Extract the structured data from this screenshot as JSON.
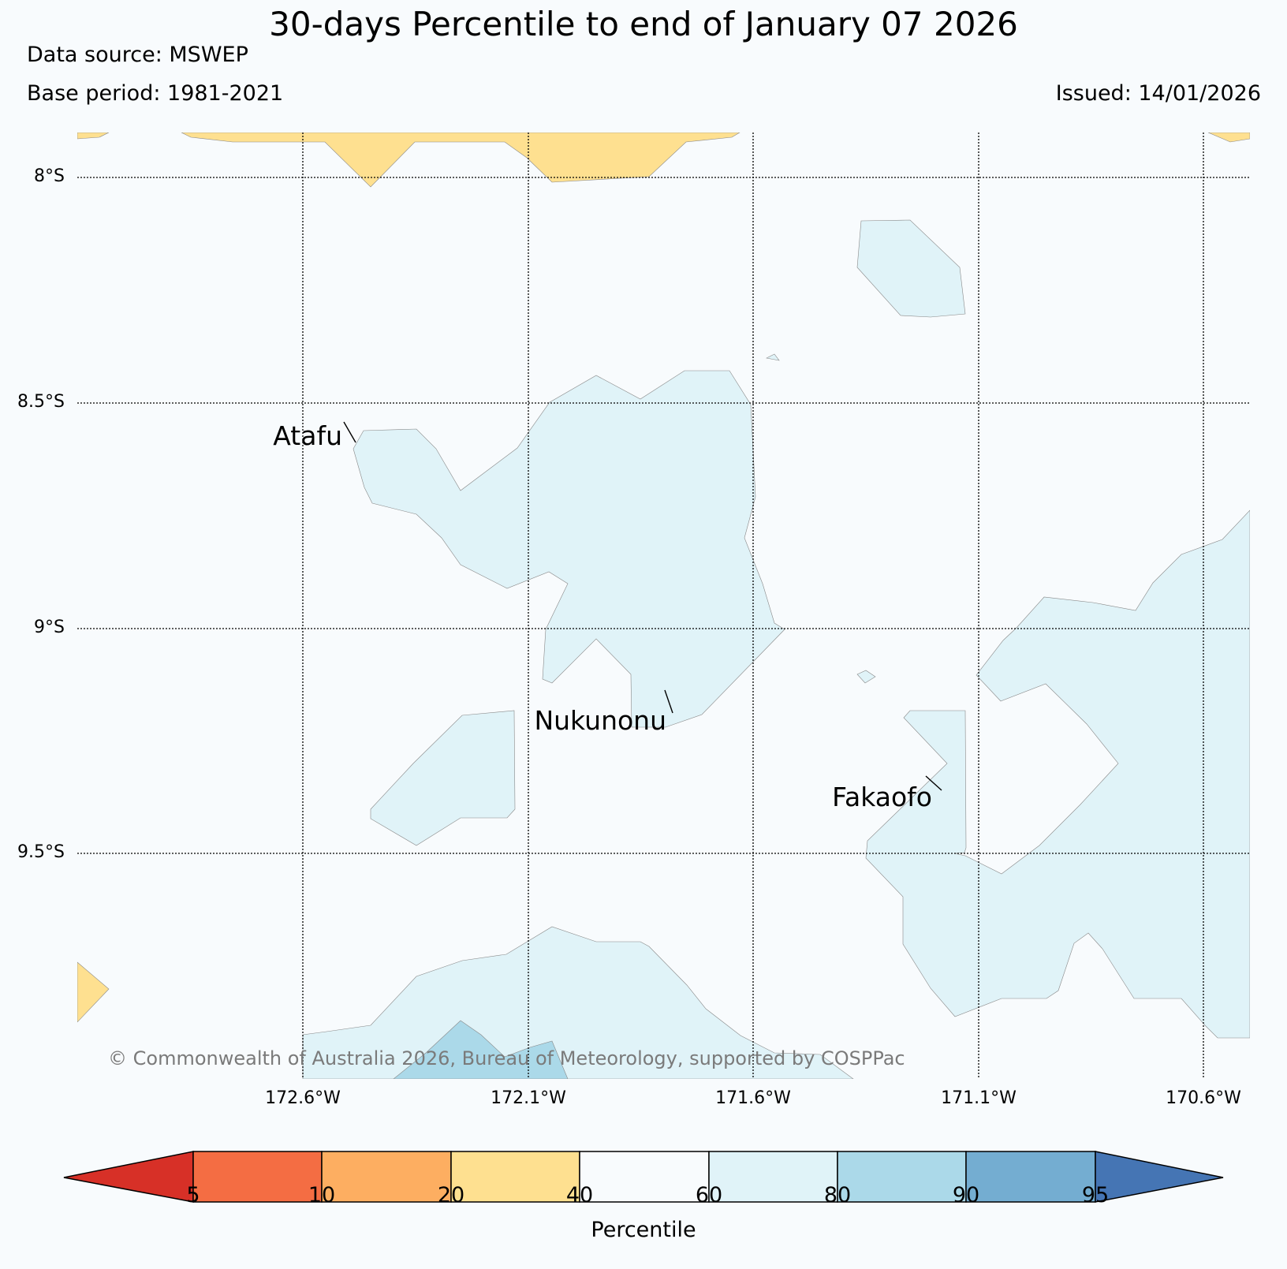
{
  "header": {
    "title": "30-days Percentile to end of January 07 2026",
    "data_source": "Data source: MSWEP",
    "base_period": "Base period: 1981-2021",
    "issued": "Issued: 14/01/2026"
  },
  "map": {
    "lat_ticks": [
      "8°S",
      "8.5°S",
      "9°S",
      "9.5°S"
    ],
    "lon_ticks": [
      "172.6°W",
      "172.1°W",
      "171.6°W",
      "171.1°W",
      "170.6°W"
    ],
    "places": [
      {
        "name": "Atafu"
      },
      {
        "name": "Nukunonu"
      },
      {
        "name": "Fakaofo"
      }
    ],
    "copyright": "© Commonwealth of Australia 2026, Bureau of Meteorology, supported by COSPPac"
  },
  "colorbar": {
    "title": "Percentile",
    "ticks": [
      "5",
      "10",
      "20",
      "40",
      "60",
      "80",
      "90",
      "95"
    ],
    "colors": {
      "below_5": "#d73027",
      "5_10": "#f46d43",
      "10_20": "#fdae61",
      "20_40": "#fee090",
      "40_60": "#f8fbfd",
      "60_80": "#e0f3f8",
      "80_90": "#abd9e9",
      "90_95": "#74add1",
      "above_95": "#4575b4"
    }
  }
}
